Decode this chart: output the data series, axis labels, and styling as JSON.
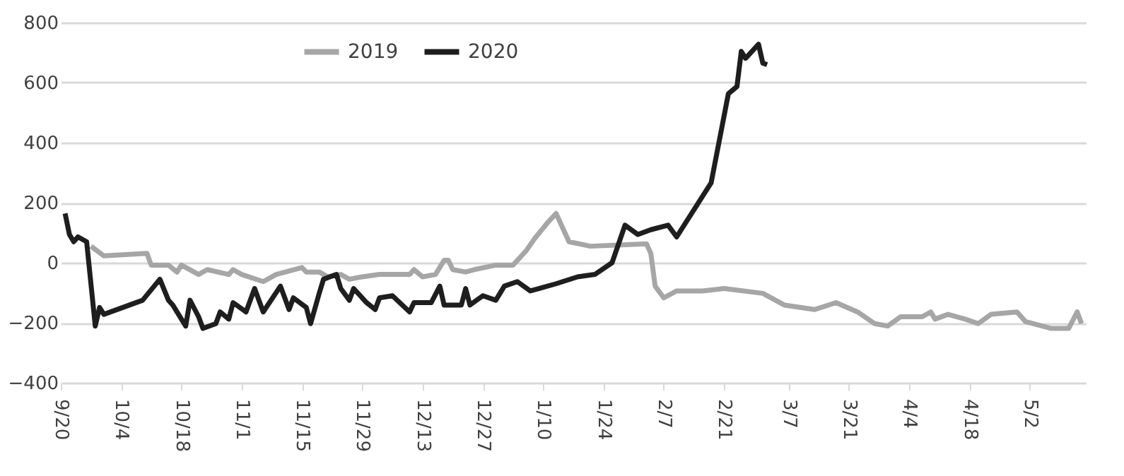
{
  "chart_data": {
    "type": "line",
    "legend": "top",
    "grid": "y",
    "line_style": "solid",
    "marker": "none",
    "xlim": [
      "2019-09-20",
      "2020-05-15"
    ],
    "xticks": [
      {
        "value": "2019-09-20",
        "label": "9/20"
      },
      {
        "value": "2019-10-04",
        "label": "10/4"
      },
      {
        "value": "2019-10-18",
        "label": "10/18"
      },
      {
        "value": "2019-11-01",
        "label": "11/1"
      },
      {
        "value": "2019-11-15",
        "label": "11/15"
      },
      {
        "value": "2019-11-29",
        "label": "11/29"
      },
      {
        "value": "2019-12-13",
        "label": "12/13"
      },
      {
        "value": "2019-12-27",
        "label": "12/27"
      },
      {
        "value": "2020-01-10",
        "label": "1/10"
      },
      {
        "value": "2020-01-24",
        "label": "1/24"
      },
      {
        "value": "2020-02-07",
        "label": "2/7"
      },
      {
        "value": "2020-02-21",
        "label": "2/21"
      },
      {
        "value": "2020-03-07",
        "label": "3/7"
      },
      {
        "value": "2020-03-21",
        "label": "3/21"
      },
      {
        "value": "2020-04-04",
        "label": "4/4"
      },
      {
        "value": "2020-04-18",
        "label": "4/18"
      },
      {
        "value": "2020-05-02",
        "label": "5/2"
      }
    ],
    "ylim": [
      -400,
      800
    ],
    "yticks": [
      -400,
      -200,
      0,
      200,
      400,
      600,
      800
    ],
    "series": [
      {
        "name": "2019",
        "color": "#a6a6a6",
        "x": [
          "2019-09-27",
          "2019-09-30",
          "2019-10-10",
          "2019-10-11",
          "2019-10-15",
          "2019-10-17",
          "2019-10-18",
          "2019-10-22",
          "2019-10-24",
          "2019-10-29",
          "2019-10-30",
          "2019-11-01",
          "2019-11-06",
          "2019-11-09",
          "2019-11-15",
          "2019-11-16",
          "2019-11-19",
          "2019-11-21",
          "2019-11-24",
          "2019-11-26",
          "2019-11-29",
          "2019-12-03",
          "2019-12-10",
          "2019-12-11",
          "2019-12-13",
          "2019-12-16",
          "2019-12-18",
          "2019-12-19",
          "2019-12-20",
          "2019-12-23",
          "2019-12-25",
          "2019-12-30",
          "2020-01-03",
          "2020-01-06",
          "2020-01-08",
          "2020-01-11",
          "2020-01-13",
          "2020-01-16",
          "2020-01-21",
          "2020-02-03",
          "2020-02-04",
          "2020-02-05",
          "2020-02-07",
          "2020-02-10",
          "2020-02-16",
          "2020-02-21",
          "2020-03-01",
          "2020-03-06",
          "2020-03-13",
          "2020-03-18",
          "2020-03-23",
          "2020-03-27",
          "2020-03-30",
          "2020-04-02",
          "2020-04-07",
          "2020-04-09",
          "2020-04-10",
          "2020-04-13",
          "2020-04-17",
          "2020-04-20",
          "2020-04-23",
          "2020-04-29",
          "2020-05-01",
          "2020-05-07",
          "2020-05-11",
          "2020-05-13",
          "2020-05-14"
        ],
        "values": [
          55,
          23,
          31,
          -8,
          -8,
          -31,
          -8,
          -39,
          -23,
          -39,
          -23,
          -39,
          -63,
          -39,
          -16,
          -31,
          -31,
          -47,
          -39,
          -55,
          -47,
          -39,
          -39,
          -23,
          -47,
          -39,
          8,
          8,
          -23,
          -31,
          -23,
          -8,
          -8,
          39,
          80,
          133,
          164,
          70,
          55,
          63,
          31,
          -78,
          -117,
          -94,
          -94,
          -86,
          -102,
          -141,
          -156,
          -133,
          -164,
          -203,
          -211,
          -180,
          -180,
          -164,
          -188,
          -172,
          -188,
          -203,
          -172,
          -164,
          -196,
          -219,
          -219,
          -164,
          -203
        ]
      },
      {
        "name": "2020",
        "color": "#1e1e1e",
        "x": [
          "2019-09-21",
          "2019-09-22",
          "2019-09-23",
          "2019-09-24",
          "2019-09-26",
          "2019-09-28",
          "2019-09-29",
          "2019-09-30",
          "2019-10-09",
          "2019-10-13",
          "2019-10-15",
          "2019-10-16",
          "2019-10-19",
          "2019-10-20",
          "2019-10-22",
          "2019-10-23",
          "2019-10-26",
          "2019-10-27",
          "2019-10-29",
          "2019-10-30",
          "2019-11-02",
          "2019-11-04",
          "2019-11-06",
          "2019-11-10",
          "2019-11-12",
          "2019-11-13",
          "2019-11-16",
          "2019-11-17",
          "2019-11-19",
          "2019-11-20",
          "2019-11-23",
          "2019-11-24",
          "2019-11-26",
          "2019-11-27",
          "2019-11-30",
          "2019-12-02",
          "2019-12-03",
          "2019-12-06",
          "2019-12-10",
          "2019-12-11",
          "2019-12-15",
          "2019-12-17",
          "2019-12-18",
          "2019-12-22",
          "2019-12-23",
          "2019-12-24",
          "2019-12-27",
          "2019-12-30",
          "2020-01-01",
          "2020-01-04",
          "2020-01-07",
          "2020-01-09",
          "2020-01-13",
          "2020-01-18",
          "2020-01-22",
          "2020-01-26",
          "2020-01-29",
          "2020-02-01",
          "2020-02-04",
          "2020-02-08",
          "2020-02-10",
          "2020-02-18",
          "2020-02-22",
          "2020-02-24",
          "2020-02-25",
          "2020-02-26",
          "2020-02-29",
          "2020-03-01",
          "2020-03-02"
        ],
        "values": [
          164,
          94,
          70,
          86,
          70,
          -211,
          -149,
          -172,
          -125,
          -55,
          -125,
          -141,
          -211,
          -125,
          -180,
          -219,
          -203,
          -164,
          -188,
          -133,
          -164,
          -86,
          -164,
          -78,
          -156,
          -117,
          -149,
          -203,
          -102,
          -55,
          -39,
          -86,
          -125,
          -86,
          -133,
          -156,
          -117,
          -110,
          -164,
          -133,
          -133,
          -78,
          -141,
          -141,
          -86,
          -141,
          -110,
          -125,
          -78,
          -63,
          -94,
          -86,
          -70,
          -47,
          -39,
          0,
          125,
          94,
          110,
          125,
          86,
          266,
          563,
          587,
          704,
          681,
          728,
          665,
          660
        ]
      }
    ]
  }
}
